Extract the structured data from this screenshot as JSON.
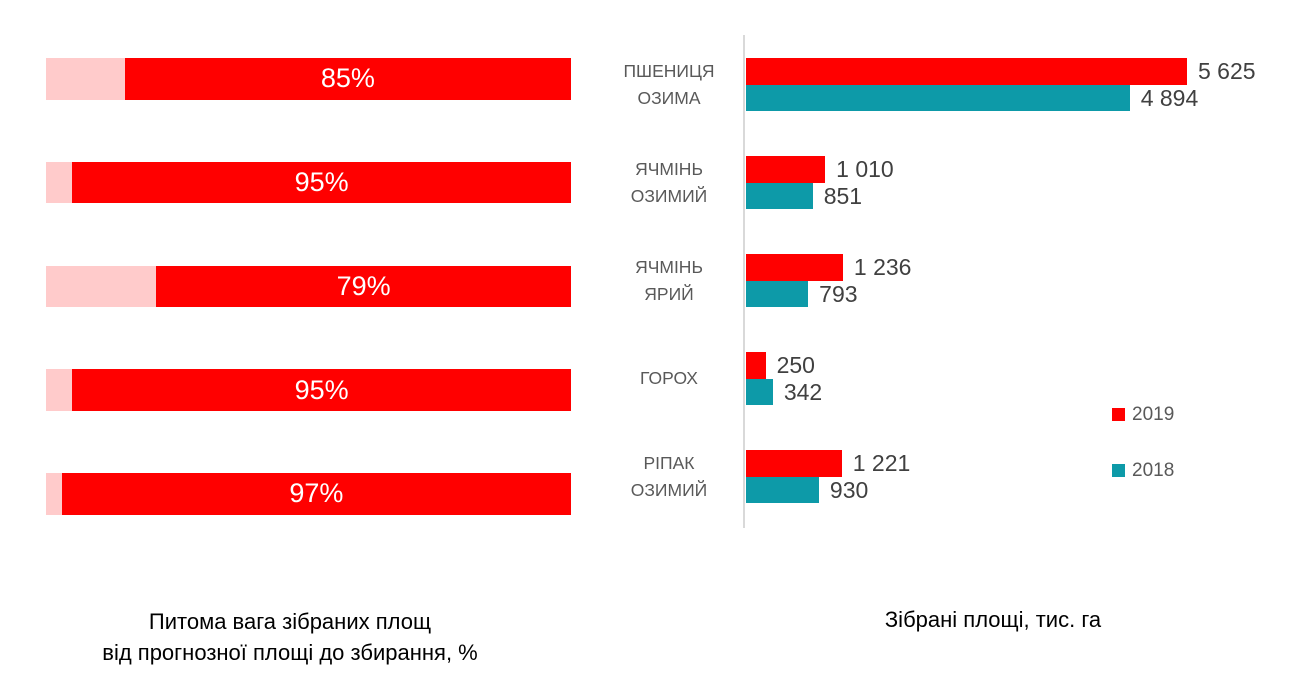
{
  "colors": {
    "red_2019": "#FF0000",
    "pink_remainder": "#FFCBCB",
    "teal_2018": "#0D9AA8",
    "axis_line": "#D9D9D9",
    "category_label": "#595959",
    "value_label": "#404040",
    "percent_label": "#FFFFFF",
    "caption": "#000000"
  },
  "captions": {
    "left_line1": "Питома вага зібраних площ",
    "left_line2": "від прогнозної площі до збирання, %",
    "right": "Зібрані площі, тис. га"
  },
  "legend": {
    "items": [
      {
        "label": "2019",
        "color_key": "red_2019"
      },
      {
        "label": "2018",
        "color_key": "teal_2018"
      }
    ]
  },
  "chart_data": [
    {
      "id": "share-of-harvested-area",
      "type": "bar",
      "orientation": "horizontal",
      "title": "Питома вага зібраних площ від прогнозної площі до збирання, %",
      "categories": [
        "ПШЕНИЦЯ ОЗИМА",
        "ЯЧМІНЬ ОЗИМИЙ",
        "ЯЧМІНЬ ЯРИЙ",
        "ГОРОХ",
        "РІПАК ОЗИМИЙ"
      ],
      "values": [
        85,
        95,
        79,
        95,
        97
      ],
      "value_labels": [
        "85%",
        "95%",
        "79%",
        "95%",
        "97%"
      ],
      "xlim": [
        0,
        100
      ],
      "style": "stacked to 100%, remainder segment in light pink at left, value segment in red with centered white label",
      "grid": false,
      "fill_color_key": "red_2019",
      "remainder_color_key": "pink_remainder"
    },
    {
      "id": "harvested-area",
      "type": "bar",
      "orientation": "horizontal",
      "title": "Зібрані площі, тис. га",
      "categories_lines": [
        [
          "ПШЕНИЦЯ",
          "ОЗИМА"
        ],
        [
          "ЯЧМІНЬ",
          "ОЗИМИЙ"
        ],
        [
          "ЯЧМІНЬ",
          "ЯРИЙ"
        ],
        [
          "ГОРОХ"
        ],
        [
          "РІПАК",
          "ОЗИМИЙ"
        ]
      ],
      "series": [
        {
          "name": "2019",
          "color_key": "red_2019",
          "values": [
            5625,
            1010,
            1236,
            250,
            1221
          ],
          "value_labels": [
            "5 625",
            "1 010",
            "1 236",
            "250",
            "1 221"
          ]
        },
        {
          "name": "2018",
          "color_key": "teal_2018",
          "values": [
            4894,
            851,
            793,
            342,
            930
          ],
          "value_labels": [
            "4 894",
            "851",
            "793",
            "342",
            "930"
          ]
        }
      ],
      "xlim": [
        0,
        5625
      ],
      "legend_position": "right",
      "grid": false
    }
  ]
}
